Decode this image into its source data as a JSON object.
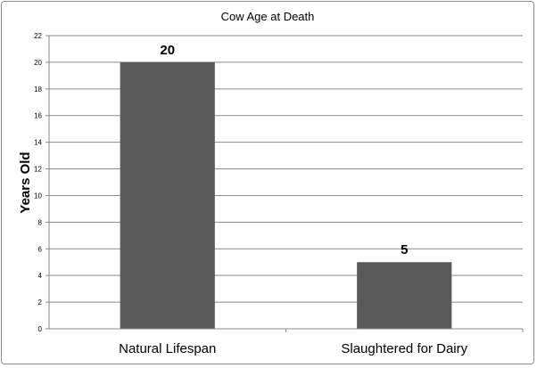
{
  "chart_data": {
    "type": "bar",
    "title": "Cow Age at Death",
    "xlabel": "",
    "ylabel": "Years Old",
    "categories": [
      "Natural Lifespan",
      "Slaughtered for Dairy"
    ],
    "values": [
      20,
      5
    ],
    "data_labels": [
      "20",
      "5"
    ],
    "ylim": [
      0,
      22
    ],
    "yticks": [
      "0",
      "2",
      "4",
      "6",
      "8",
      "10",
      "12",
      "14",
      "16",
      "18",
      "20",
      "22"
    ],
    "grid": true,
    "legend": "none",
    "bar_color": "#5a5a5a"
  }
}
